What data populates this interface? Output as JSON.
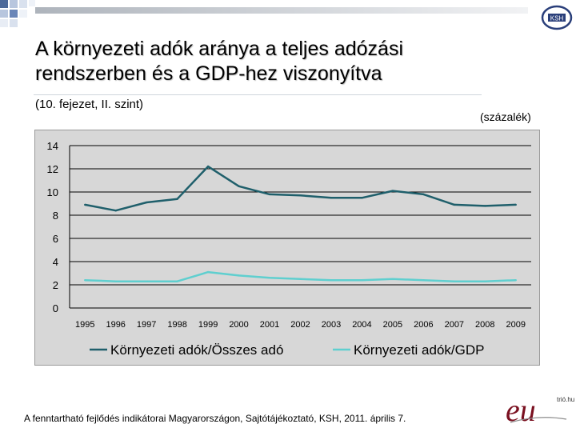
{
  "slide": {
    "title_line1": "A környezeti adók aránya a teljes adózási",
    "title_line2": "rendszerben és a GDP-hez viszonyítva",
    "subtitle": "(10. fejezet, II. szint)",
    "unit": "(százalék)",
    "footer": "A fenntartható fejlődés indikátorai Magyarországon, Sajtótájékoztató, KSH, 2011. április 7.",
    "logo_ksh_text": "KSH",
    "logo_eu_text": "eu",
    "logo_eu_sub": "trió.hu"
  },
  "colors": {
    "series1": "#1f5f6b",
    "series2": "#5fcfcf",
    "plot_bg": "#d7d7d7",
    "grid": "#000000"
  },
  "chart_data": {
    "type": "line",
    "title": "",
    "xlabel": "",
    "ylabel": "",
    "categories": [
      "1995",
      "1996",
      "1997",
      "1998",
      "1999",
      "2000",
      "2001",
      "2002",
      "2003",
      "2004",
      "2005",
      "2006",
      "2007",
      "2008",
      "2009"
    ],
    "ylim": [
      0,
      14
    ],
    "yticks": [
      "0",
      "2",
      "4",
      "6",
      "8",
      "10",
      "12",
      "14"
    ],
    "series": [
      {
        "name": "Környezeti adók/Összes adó",
        "values": [
          8.9,
          8.4,
          9.1,
          9.4,
          12.2,
          10.5,
          9.8,
          9.7,
          9.5,
          9.5,
          10.1,
          9.8,
          8.9,
          8.8,
          8.9
        ]
      },
      {
        "name": "Környezeti adók/GDP",
        "values": [
          2.4,
          2.3,
          2.3,
          2.3,
          3.1,
          2.8,
          2.6,
          2.5,
          2.4,
          2.4,
          2.5,
          2.4,
          2.3,
          2.3,
          2.4
        ]
      }
    ],
    "legend_position": "bottom"
  }
}
